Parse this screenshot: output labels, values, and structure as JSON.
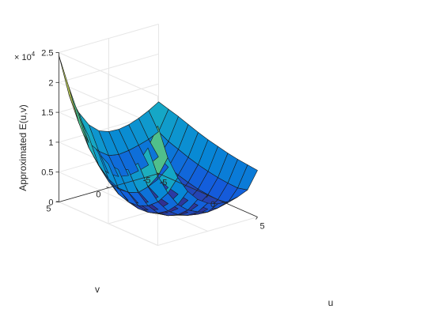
{
  "chart_data": {
    "type": "surface",
    "title": "",
    "xlabel": "u",
    "ylabel": "v",
    "zlabel": "Approximated E(u,v)",
    "z_exponent_label": "× 10",
    "z_exponent_power": "4",
    "xlim": [
      -5,
      5
    ],
    "ylim": [
      -5,
      5
    ],
    "zlim": [
      0,
      25000
    ],
    "x_ticks": [
      -5,
      0,
      5
    ],
    "y_ticks": [
      -5,
      0,
      5
    ],
    "z_ticks": [
      0,
      5000,
      10000,
      15000,
      20000,
      25000
    ],
    "z_tick_labels": [
      "0",
      "0.5",
      "1",
      "1.5",
      "2",
      "2.5"
    ],
    "x_tick_labels": [
      "-5",
      "0",
      "5"
    ],
    "y_tick_labels": [
      "-5",
      "0",
      "5"
    ],
    "grid": true,
    "colormap": "parula",
    "x": [
      -5,
      -4,
      -3,
      -2,
      -1,
      0,
      1,
      2,
      3,
      4,
      5
    ],
    "y": [
      -5,
      -4,
      -3,
      -2,
      -1,
      0,
      1,
      2,
      3,
      4,
      5
    ],
    "z": [
      [
        12000,
        11500,
        11000,
        10400,
        9800,
        9300,
        8900,
        8500,
        8200,
        8000,
        7800
      ],
      [
        11000,
        8200,
        7300,
        6700,
        6100,
        5600,
        5200,
        4900,
        4700,
        4600,
        5000
      ],
      [
        10200,
        7400,
        5200,
        4200,
        3600,
        3100,
        2700,
        2500,
        2400,
        2600,
        4300
      ],
      [
        9600,
        6900,
        4300,
        2700,
        2000,
        1600,
        1300,
        1200,
        1300,
        2200,
        4000
      ],
      [
        9300,
        6500,
        3800,
        1900,
        900,
        500,
        400,
        500,
        900,
        2000,
        4100
      ],
      [
        9400,
        6300,
        3500,
        1600,
        500,
        0,
        200,
        500,
        1200,
        2500,
        4700
      ],
      [
        10000,
        6600,
        3800,
        1900,
        800,
        400,
        500,
        900,
        1800,
        3300,
        5800
      ],
      [
        11500,
        7800,
        4800,
        2900,
        1700,
        1100,
        1200,
        1800,
        2900,
        4700,
        7600
      ],
      [
        14000,
        9700,
        6600,
        4700,
        3300,
        2700,
        2800,
        3500,
        4900,
        7100,
        10400
      ],
      [
        17500,
        13500,
        10100,
        7900,
        6300,
        5500,
        5500,
        6200,
        7900,
        10400,
        14200
      ],
      [
        24500,
        20000,
        16000,
        13200,
        11100,
        10000,
        9800,
        10500,
        12300,
        15600,
        20000
      ]
    ]
  }
}
